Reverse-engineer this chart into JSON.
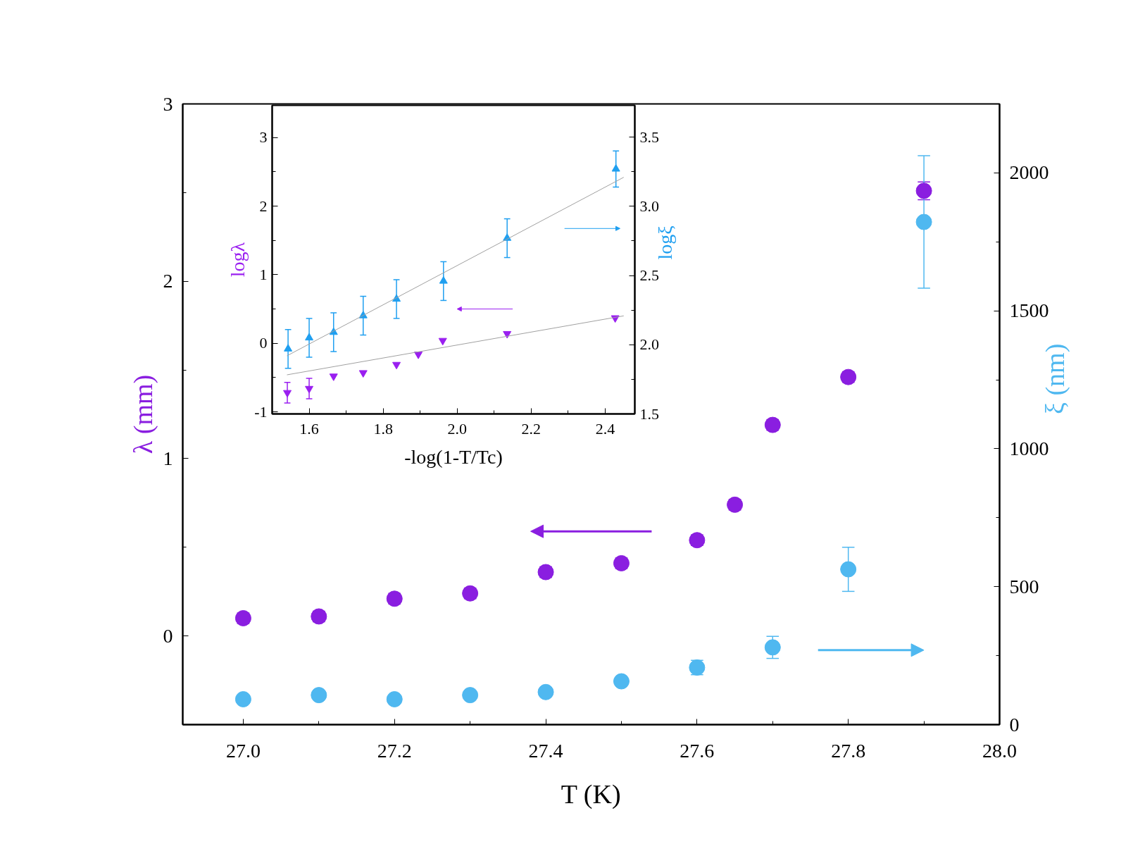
{
  "chart_data": [
    {
      "type": "scatter",
      "xlabel": "T (K)",
      "ylabel": "λ (mm)",
      "y2label": "ξ (nm)",
      "xlim": [
        26.92,
        28.0
      ],
      "xticks": [
        {
          "value": 27,
          "label": "27.0"
        },
        {
          "value": 27.2,
          "label": "27.2"
        },
        {
          "value": 27.4,
          "label": "27.4"
        },
        {
          "value": 27.6,
          "label": "27.6"
        },
        {
          "value": 27.8,
          "label": "27.8"
        },
        {
          "value": 28,
          "label": "28.0"
        }
      ],
      "ylim": [
        -0.5,
        3
      ],
      "yticks": [
        0,
        1,
        2,
        3
      ],
      "y2lim": [
        0,
        2250
      ],
      "y2ticks": [
        0,
        500,
        1000,
        1500,
        2000
      ],
      "marker": "circle",
      "grid": false,
      "series": [
        {
          "color": "#8a1ee0",
          "x": [
            27.0,
            27.1,
            27.2,
            27.3,
            27.4,
            27.5,
            27.6,
            27.65,
            27.7,
            27.8,
            27.9
          ],
          "values": [
            0.1,
            0.11,
            0.21,
            0.24,
            0.36,
            0.41,
            0.54,
            0.74,
            1.19,
            1.46,
            2.51
          ],
          "errors": [
            0.03,
            0.03,
            0.03,
            0.03,
            0.03,
            0.03,
            0.03,
            0.03,
            0.03,
            0.03,
            0.05
          ]
        },
        {
          "color": "#4fb8f0",
          "axis": "y2",
          "x": [
            27.0,
            27.1,
            27.2,
            27.3,
            27.4,
            27.5,
            27.6,
            27.7,
            27.8,
            27.9
          ],
          "values": [
            92,
            107,
            92,
            107,
            118,
            157,
            207,
            280,
            563,
            1822
          ],
          "errors": [
            null,
            null,
            null,
            null,
            null,
            null,
            26,
            40,
            80,
            240
          ]
        }
      ]
    },
    {
      "type": "scatter",
      "xlabel": "-log(1-T/Tc)",
      "ylabel": "logλ",
      "y2label": "logξ",
      "xlim": [
        1.5,
        2.48
      ],
      "xticks": [
        {
          "value": 1.6,
          "label": "1.6"
        },
        {
          "value": 1.8,
          "label": "1.8"
        },
        {
          "value": 2.0,
          "label": "2.0"
        },
        {
          "value": 2.2,
          "label": "2.2"
        },
        {
          "value": 2.4,
          "label": "2.4"
        }
      ],
      "ylim": [
        -1.03,
        3.47
      ],
      "yticks": [
        -1,
        0,
        1,
        2,
        3
      ],
      "y2lim": [
        1.5,
        3.73
      ],
      "y2ticks": [
        {
          "value": 1.5,
          "label": "1.5"
        },
        {
          "value": 2.0,
          "label": "2.0"
        },
        {
          "value": 2.5,
          "label": "2.5"
        },
        {
          "value": 3.0,
          "label": "3.0"
        },
        {
          "value": 3.5,
          "label": "3.5"
        }
      ],
      "grid": false,
      "series": [
        {
          "color": "#9a1ff0",
          "x": [
            1.541,
            1.6,
            1.666,
            1.746,
            1.836,
            1.895,
            1.961,
            2.135,
            2.427
          ],
          "values": [
            -0.72,
            -0.66,
            -0.48,
            -0.43,
            -0.31,
            -0.16,
            0.04,
            0.14,
            0.37
          ],
          "errors": [
            0.15,
            0.15,
            null,
            null,
            null,
            null,
            null,
            null,
            null
          ]
        },
        {
          "color": "#1f9ff0",
          "marker": "triangle",
          "axis": "y2",
          "x": [
            1.543,
            1.6,
            1.666,
            1.746,
            1.836,
            1.963,
            2.135,
            2.429
          ],
          "values": [
            1.97,
            2.05,
            2.09,
            2.21,
            2.33,
            2.46,
            2.77,
            3.27
          ],
          "errors": [
            0.14,
            0.14,
            0.14,
            0.14,
            0.14,
            0.14,
            0.14,
            0.13
          ]
        },
        {
          "type": "line",
          "color": "#a0a0a0",
          "marker": "none",
          "x": [
            1.54,
            2.45
          ],
          "values": [
            -0.46,
            0.4
          ]
        },
        {
          "type": "line",
          "color": "#a0a0a0",
          "marker": "none",
          "axis": "y2",
          "x": [
            1.54,
            2.45
          ],
          "values": [
            1.92,
            3.21
          ]
        }
      ]
    }
  ]
}
